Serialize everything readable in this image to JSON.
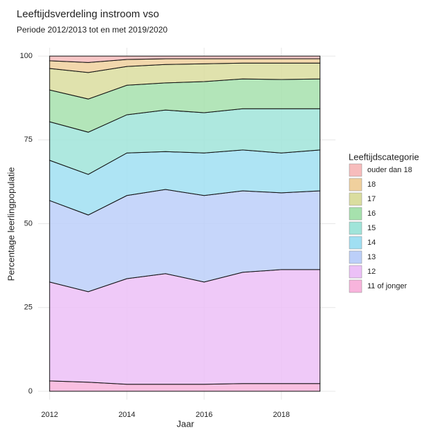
{
  "chart_data": {
    "type": "stacked_area",
    "title": "Leeftijdsverdeling instroom vso",
    "subtitle": "Periode 2012/2013 tot en met 2019/2020",
    "x_label": "Jaar",
    "y_label": "Percentage leerlingpopulatie",
    "legend_title": "Leeftijdscategorie",
    "legend_position": "right",
    "grid": true,
    "x": [
      2012,
      2013,
      2014,
      2015,
      2016,
      2017,
      2018,
      2019
    ],
    "xlim": [
      2011.7,
      2019.4
    ],
    "xticks": [
      2012,
      2014,
      2016,
      2018
    ],
    "ylim": [
      -2.5,
      102.5
    ],
    "yticks": [
      0,
      25,
      50,
      75,
      100
    ],
    "series": [
      {
        "name": "11 of jonger",
        "color": "#f8b4dc",
        "values": [
          3.1,
          2.7,
          2.1,
          2.1,
          2.1,
          2.3,
          2.3,
          2.3
        ]
      },
      {
        "name": "12",
        "color": "#ecc0f7",
        "values": [
          29.5,
          27.0,
          31.5,
          33.0,
          30.5,
          33.2,
          34.0,
          34.0
        ]
      },
      {
        "name": "13",
        "color": "#bccff9",
        "values": [
          24.3,
          22.9,
          24.8,
          25.1,
          25.8,
          24.3,
          22.9,
          23.5
        ]
      },
      {
        "name": "14",
        "color": "#a0dff2",
        "values": [
          12.0,
          12.1,
          12.7,
          11.3,
          12.7,
          12.2,
          11.9,
          12.2
        ]
      },
      {
        "name": "15",
        "color": "#a0e4d9",
        "values": [
          11.5,
          12.6,
          11.4,
          12.4,
          12.0,
          12.3,
          13.2,
          12.3
        ]
      },
      {
        "name": "16",
        "color": "#a6e1ad",
        "values": [
          9.5,
          9.9,
          8.8,
          8.1,
          9.3,
          8.9,
          8.7,
          8.9
        ]
      },
      {
        "name": "17",
        "color": "#dadd9f",
        "values": [
          6.4,
          7.9,
          5.6,
          5.5,
          5.3,
          4.7,
          4.9,
          4.7
        ]
      },
      {
        "name": "18",
        "color": "#f0d09d",
        "values": [
          2.3,
          3.0,
          2.1,
          1.7,
          1.5,
          1.3,
          1.3,
          1.3
        ]
      },
      {
        "name": "ouder dan 18",
        "color": "#f7bcbc",
        "values": [
          1.4,
          1.9,
          1.0,
          0.8,
          0.8,
          0.8,
          0.8,
          0.8
        ]
      }
    ]
  }
}
